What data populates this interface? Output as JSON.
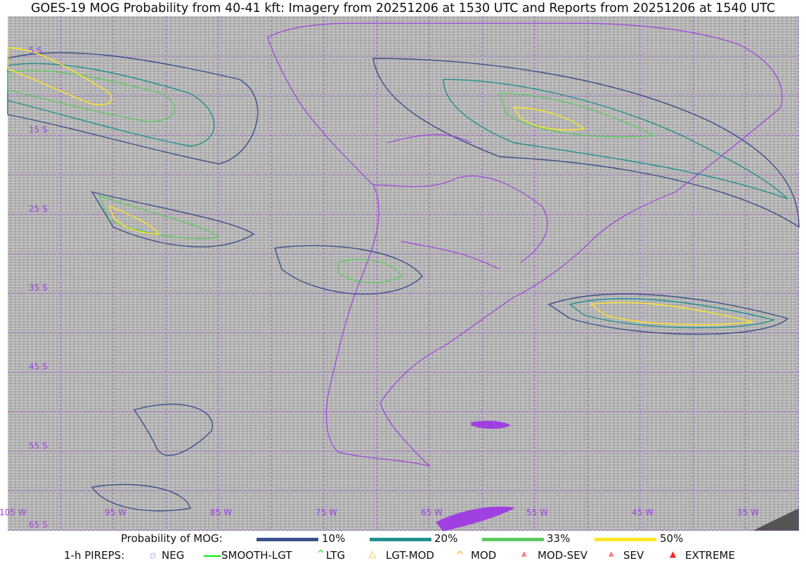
{
  "title": "GOES-19 MOG Probability from 40-41 kft: Imagery from 20251206 at 1530 UTC and Reports from 20251206 at 1540 UTC",
  "map": {
    "lat_labels": [
      "5 S",
      "15 S",
      "25 S",
      "35 S",
      "45 S",
      "55 S",
      "65 S"
    ],
    "lon_labels": [
      "105 W",
      "95 W",
      "85 W",
      "75 W",
      "65 W",
      "55 W",
      "45 W",
      "35 W"
    ],
    "colors": {
      "background": "#b8b8b8",
      "grid": "#a040e0",
      "borders": "#a040e0"
    }
  },
  "legend_probability": {
    "label": "Probability of MOG:",
    "items": [
      {
        "label": "10%",
        "color": "#3b518b"
      },
      {
        "label": "20%",
        "color": "#21908c"
      },
      {
        "label": "33%",
        "color": "#5ec962"
      },
      {
        "label": "50%",
        "color": "#fde725"
      }
    ]
  },
  "legend_pireps": {
    "label": "1-h PIREPS:",
    "items": [
      {
        "label": "NEG",
        "icon": "neg-icon",
        "color": "#c8c8ff"
      },
      {
        "label": "SMOOTH-LGT",
        "icon": "smooth-lgt-icon",
        "color": "#00ee00"
      },
      {
        "label": "LTG",
        "icon": "ltg-icon",
        "color": "#00ee00"
      },
      {
        "label": "LGT-MOD",
        "icon": "lgt-mod-icon",
        "color": "#ffb020"
      },
      {
        "label": "MOD",
        "icon": "mod-icon",
        "color": "#ffb020"
      },
      {
        "label": "MOD-SEV",
        "icon": "mod-sev-icon",
        "color": "#ff2020"
      },
      {
        "label": "SEV",
        "icon": "sev-icon",
        "color": "#ff2020"
      },
      {
        "label": "EXTREME",
        "icon": "extreme-icon",
        "color": "#ff2020"
      }
    ]
  }
}
